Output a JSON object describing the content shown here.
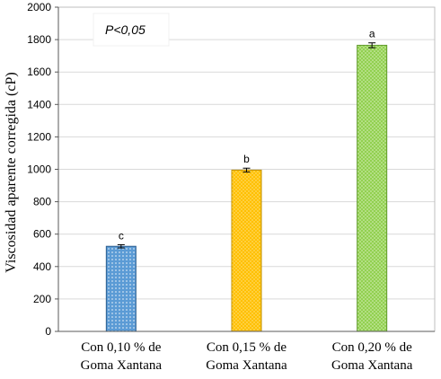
{
  "chart_data": {
    "type": "bar",
    "title": "",
    "xlabel": "",
    "ylabel": "Viscosidad aparente corregida (cP)",
    "ylim": [
      0,
      2000
    ],
    "yticks": [
      "0",
      "200",
      "400",
      "600",
      "800",
      "1000",
      "1200",
      "1400",
      "1600",
      "1800",
      "2000"
    ],
    "grid": true,
    "annotation": "P<0,05",
    "categories": [
      [
        "Con 0,10 % de",
        "Goma Xantana"
      ],
      [
        "Con 0,15 % de",
        "Goma Xantana"
      ],
      [
        "Con 0,20 % de",
        "Goma Xantana"
      ]
    ],
    "values": [
      525,
      995,
      1765
    ],
    "errors": [
      10,
      12,
      15
    ],
    "letters": [
      "c",
      "b",
      "a"
    ],
    "colors": [
      "#5b9bd5",
      "#ffc000",
      "#92d050"
    ],
    "edge_colors": [
      "#2e5f8f",
      "#c09000",
      "#5f9a2a"
    ]
  }
}
